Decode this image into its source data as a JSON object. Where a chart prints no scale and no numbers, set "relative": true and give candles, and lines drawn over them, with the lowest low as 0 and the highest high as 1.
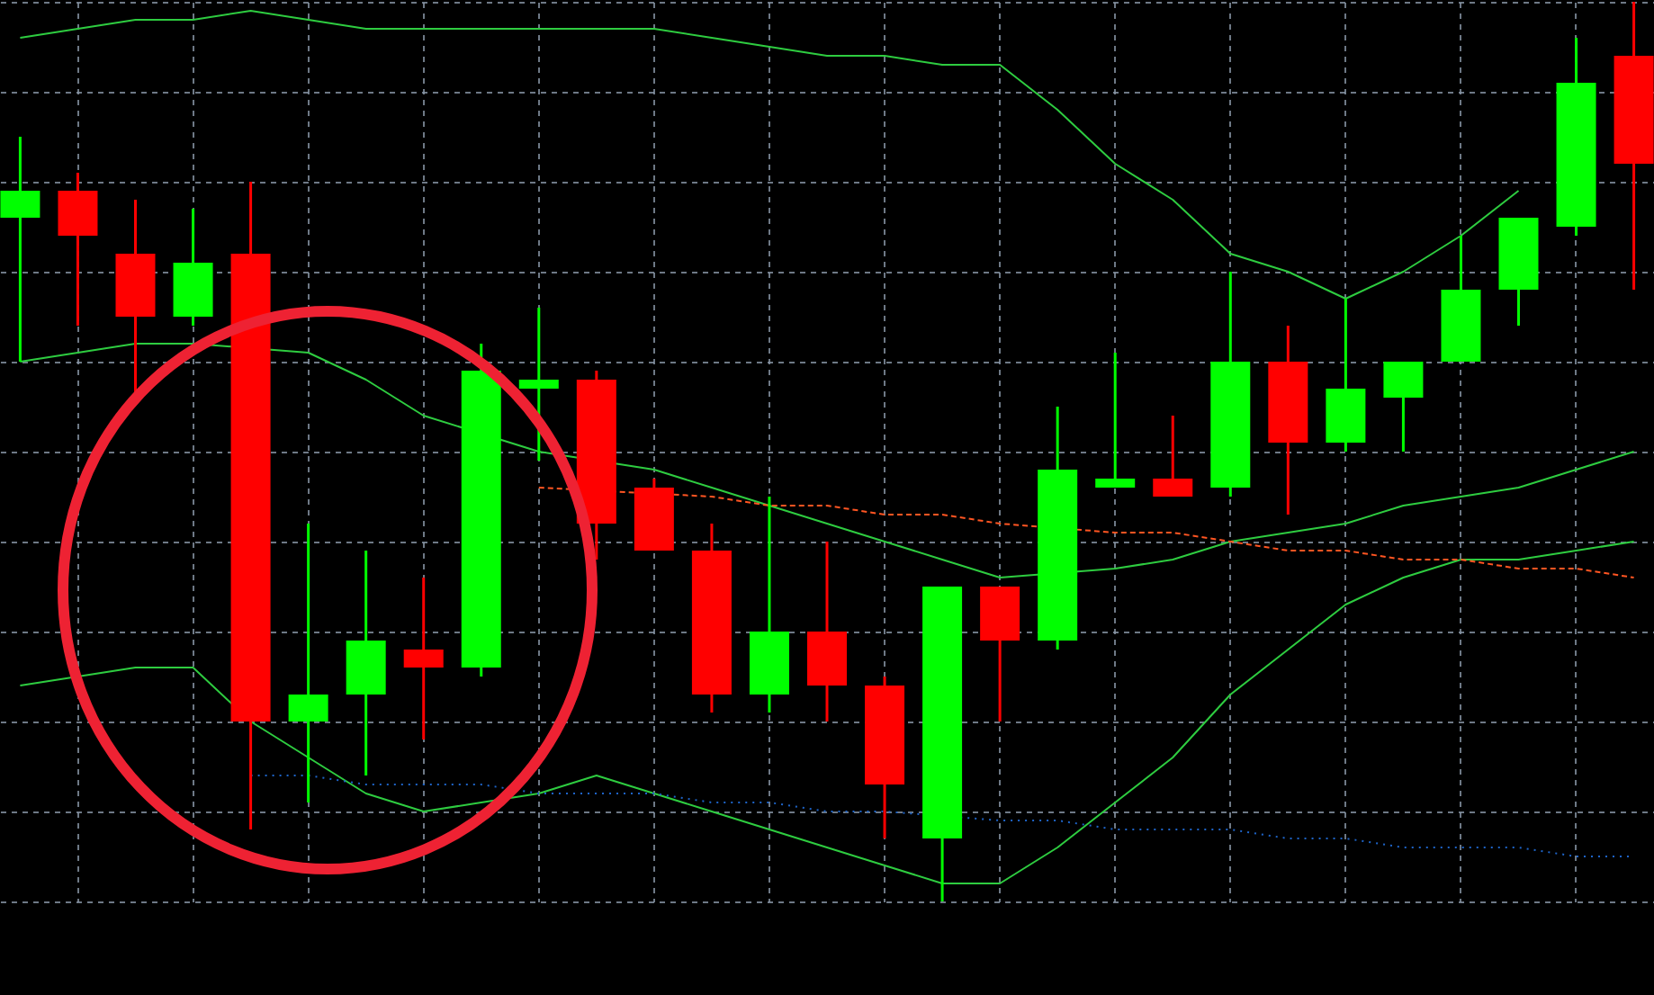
{
  "chart_data": {
    "type": "candlestick",
    "relative": true,
    "grid": true,
    "categories": [
      null,
      null,
      null,
      null,
      null,
      null,
      null,
      null,
      null,
      null,
      null,
      null,
      null,
      null,
      null,
      null,
      null,
      null,
      null,
      null,
      null,
      null,
      null,
      null,
      null,
      null,
      null,
      null,
      null
    ],
    "ohlc": [
      [
        0.76,
        0.85,
        0.6,
        0.79
      ],
      [
        0.79,
        0.81,
        0.64,
        0.74
      ],
      [
        0.72,
        0.78,
        0.56,
        0.65
      ],
      [
        0.65,
        0.77,
        0.64,
        0.71
      ],
      [
        0.72,
        0.8,
        0.08,
        0.2
      ],
      [
        0.2,
        0.42,
        0.11,
        0.23
      ],
      [
        0.23,
        0.39,
        0.14,
        0.29
      ],
      [
        0.28,
        0.36,
        0.18,
        0.26
      ],
      [
        0.26,
        0.62,
        0.25,
        0.59
      ],
      [
        0.57,
        0.66,
        0.49,
        0.58
      ],
      [
        0.58,
        0.59,
        0.38,
        0.42
      ],
      [
        0.46,
        0.47,
        0.39,
        0.39
      ],
      [
        0.39,
        0.42,
        0.21,
        0.23
      ],
      [
        0.23,
        0.45,
        0.21,
        0.3
      ],
      [
        0.3,
        0.4,
        0.2,
        0.24
      ],
      [
        0.24,
        0.25,
        0.07,
        0.13
      ],
      [
        0.07,
        0.35,
        0,
        0.35
      ],
      [
        0.35,
        0.35,
        0.2,
        0.29
      ],
      [
        0.29,
        0.55,
        0.28,
        0.48
      ],
      [
        0.46,
        0.61,
        0.46,
        0.47
      ],
      [
        0.47,
        0.54,
        0.45,
        0.45
      ],
      [
        0.46,
        0.7,
        0.45,
        0.6
      ],
      [
        0.6,
        0.64,
        0.43,
        0.51
      ],
      [
        0.51,
        0.67,
        0.5,
        0.57
      ],
      [
        0.56,
        0.6,
        0.5,
        0.6
      ],
      [
        0.6,
        0.74,
        0.6,
        0.68
      ],
      [
        0.68,
        0.76,
        0.64,
        0.76
      ],
      [
        0.75,
        0.96,
        0.74,
        0.91
      ],
      [
        0.94,
        1,
        0.68,
        0.82
      ]
    ],
    "colors": [
      "#00ff00",
      "#ff0000",
      "#ff0000",
      "#00ff00",
      "#ff0000",
      "#00ff00",
      "#00ff00",
      "#ff0000",
      "#00ff00",
      "#00ff00",
      "#ff0000",
      "#ff0000",
      "#ff0000",
      "#00ff00",
      "#ff0000",
      "#ff0000",
      "#00ff00",
      "#ff0000",
      "#00ff00",
      "#00ff00",
      "#ff0000",
      "#00ff00",
      "#ff0000",
      "#00ff00",
      "#00ff00",
      "#00ff00",
      "#00ff00",
      "#00ff00",
      "#ff0000"
    ],
    "series": [
      {
        "type": "line",
        "color": "#2ecc40",
        "line_style": "solid",
        "values": [
          0.96,
          0.97,
          0.98,
          0.98,
          0.99,
          0.98,
          0.97,
          0.97,
          0.97,
          0.97,
          0.97,
          0.97,
          0.96,
          0.95,
          0.94,
          0.94,
          0.93,
          0.93,
          0.88,
          0.82,
          0.78,
          0.72,
          0.7,
          0.67,
          0.7,
          0.74,
          0.79,
          null,
          null
        ]
      },
      {
        "type": "line",
        "color": "#2ecc40",
        "line_style": "solid",
        "values": [
          0.6,
          0.61,
          0.62,
          0.62,
          null,
          0.61,
          0.58,
          0.54,
          null,
          0.5,
          null,
          0.48,
          0.46,
          0.44,
          0.42,
          0.4,
          0.38,
          0.36,
          null,
          0.37,
          0.38,
          0.4,
          0.41,
          0.42,
          0.44,
          0.45,
          0.46,
          0.48,
          0.5
        ]
      },
      {
        "type": "line",
        "color": "#2ecc40",
        "line_style": "solid",
        "values": [
          0.24,
          0.25,
          0.26,
          0.26,
          0.2,
          0.16,
          0.12,
          0.1,
          0.11,
          0.12,
          0.14,
          0.12,
          0.1,
          0.08,
          0.06,
          0.04,
          0.02,
          0.02,
          0.06,
          0.11,
          0.16,
          0.23,
          0.28,
          0.33,
          0.36,
          0.38,
          0.38,
          0.39,
          0.4
        ]
      },
      {
        "type": "line",
        "color": "#ff5522",
        "line_style": "dashed",
        "values": [
          null,
          null,
          null,
          null,
          null,
          null,
          null,
          null,
          null,
          0.46,
          null,
          null,
          0.45,
          0.44,
          0.44,
          0.43,
          0.43,
          0.42,
          null,
          0.41,
          0.41,
          0.4,
          0.39,
          0.39,
          0.38,
          0.38,
          0.37,
          0.37,
          0.36
        ]
      },
      {
        "type": "line",
        "color": "#1e64c8",
        "line_style": "dotted",
        "values": [
          null,
          null,
          null,
          null,
          0.14,
          0.14,
          0.13,
          0.13,
          0.13,
          0.12,
          0.12,
          0.12,
          0.11,
          0.11,
          0.1,
          0.1,
          null,
          0.09,
          0.09,
          0.08,
          0.08,
          0.08,
          0.07,
          0.07,
          0.06,
          0.06,
          0.06,
          0.05,
          0.05
        ]
      }
    ]
  }
}
